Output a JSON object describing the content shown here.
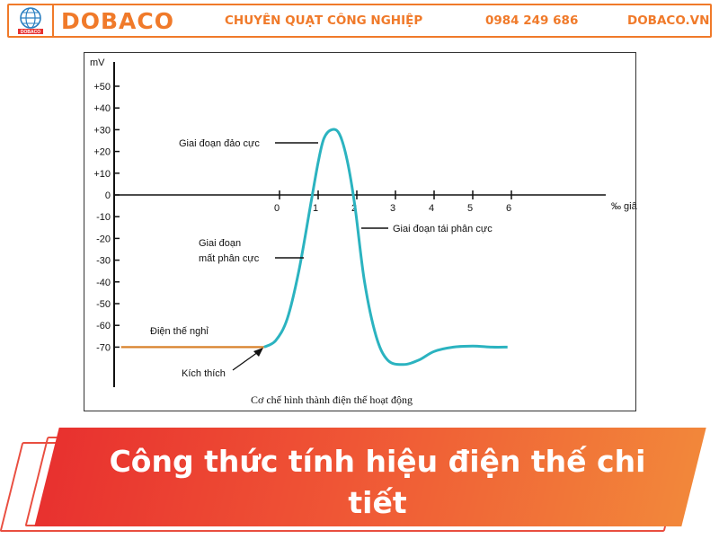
{
  "header": {
    "brand": "DOBACO",
    "slogan": "CHUYÊN QUẠT CÔNG NGHIỆP",
    "phone": "0984 249 686",
    "website": "DOBACO.VN",
    "logo_badge": "DOBACO"
  },
  "colors": {
    "accent": "#f07a2a",
    "curve": "#2bb3c0",
    "resting": "#d9822b",
    "banner_start": "#e8312f",
    "banner_end": "#f2873a"
  },
  "chart_data": {
    "type": "line",
    "ylabel": "mV",
    "xlabel": "‰ giây",
    "caption": "Cơ chế hình thành điện thế hoạt động",
    "yticks": [
      "+50",
      "+40",
      "+30",
      "+20",
      "+10",
      "0",
      "-10",
      "-20",
      "-30",
      "-40",
      "-50",
      "-60",
      "-70"
    ],
    "ytick_values": [
      50,
      40,
      30,
      20,
      10,
      0,
      -10,
      -20,
      -30,
      -40,
      -50,
      -60,
      -70
    ],
    "xticks": [
      "0",
      "1",
      "2",
      "3",
      "4",
      "5",
      "6"
    ],
    "xtick_values": [
      0,
      1,
      2,
      3,
      4,
      5,
      6
    ],
    "xlim": [
      -4.4,
      8.6
    ],
    "ylim": [
      -88,
      65
    ],
    "series": [
      {
        "role": "resting",
        "x": [
          -4.1,
          -0.4
        ],
        "y": [
          -70,
          -70
        ]
      },
      {
        "role": "action",
        "x": [
          -0.4,
          -0.1,
          0.2,
          0.5,
          0.8,
          1.0,
          1.15,
          1.35,
          1.55,
          1.75,
          1.95,
          2.2,
          2.5,
          2.8,
          3.2,
          3.6,
          4.0,
          4.5,
          5.0,
          5.5,
          5.9
        ],
        "y": [
          -70,
          -67,
          -57,
          -35,
          -5,
          15,
          26,
          30,
          28,
          16,
          -5,
          -40,
          -65,
          -76,
          -78,
          -76,
          -72,
          -70,
          -69.5,
          -70,
          -70
        ]
      }
    ],
    "annotations": [
      {
        "text": "Giai đoạn đảo cực"
      },
      {
        "text": "Giai đoạn tái phân cực"
      },
      {
        "text": "Giai đoạn"
      },
      {
        "text": "mất phân cực"
      },
      {
        "text": "Điện thế nghỉ"
      },
      {
        "text": "Kích thích"
      }
    ]
  },
  "banner": {
    "title": "Công thức tính hiệu điện thế chi tiết"
  }
}
